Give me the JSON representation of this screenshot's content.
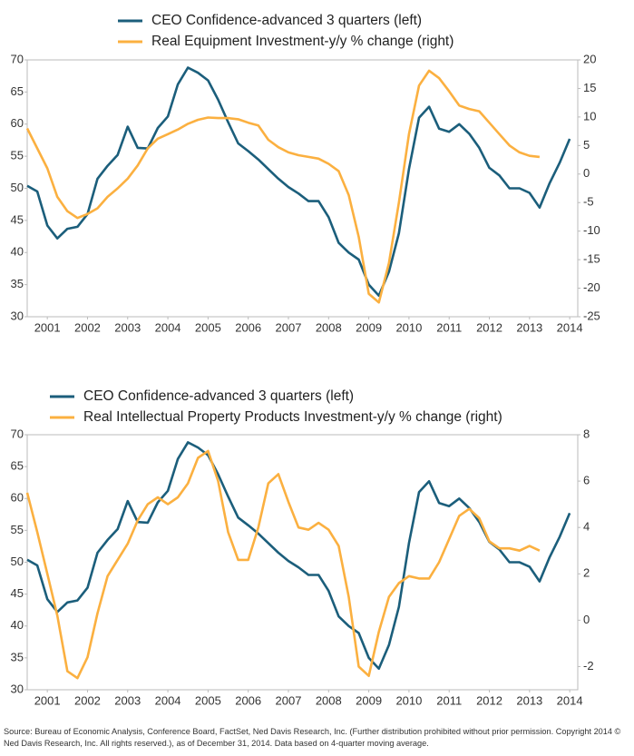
{
  "chart_data": [
    {
      "type": "line",
      "x": [
        2001,
        2001.25,
        2001.5,
        2001.75,
        2002,
        2002.25,
        2002.5,
        2002.75,
        2003,
        2003.25,
        2003.5,
        2003.75,
        2004,
        2004.25,
        2004.5,
        2004.75,
        2005,
        2005.25,
        2005.5,
        2005.75,
        2006,
        2006.25,
        2006.5,
        2006.75,
        2007,
        2007.25,
        2007.5,
        2007.75,
        2008,
        2008.25,
        2008.5,
        2008.75,
        2009,
        2009.25,
        2009.5,
        2009.75,
        2010,
        2010.25,
        2010.5,
        2010.75,
        2011,
        2011.25,
        2011.5,
        2011.75,
        2012,
        2012.25,
        2012.5,
        2012.75,
        2013,
        2013.25,
        2013.5,
        2013.75,
        2014,
        2014.25,
        2014.5
      ],
      "series": [
        {
          "name": "CEO Confidence-advanced 3 quarters (left)",
          "color": "#1b5e7b",
          "axis": "y",
          "values": [
            50.4,
            49.5,
            44.2,
            42.2,
            43.7,
            44.0,
            46,
            51.5,
            53.5,
            55.2,
            59.6,
            56.3,
            56.2,
            59.4,
            61.2,
            66.2,
            68.8,
            68,
            66.8,
            63.8,
            60.3,
            57,
            55.8,
            54.5,
            53,
            51.5,
            50.2,
            49.2,
            48,
            48,
            45.5,
            41.5,
            40,
            38.9,
            35,
            33.3,
            37,
            43,
            53,
            61,
            62.7,
            59.3,
            58.8,
            60,
            58.5,
            56.3,
            53.2,
            52,
            50,
            50,
            49.3,
            47,
            50.8,
            54,
            57.7
          ]
        },
        {
          "name": "Real Equipment Investment-y/y % change (right)",
          "color": "#fbb040",
          "axis": "y2",
          "values": [
            8,
            4.5,
            1,
            -4,
            -6.5,
            -7.7,
            -7,
            -6,
            -4,
            -2.5,
            -0.8,
            1.5,
            4.5,
            6.2,
            7,
            7.8,
            8.8,
            9.5,
            9.9,
            9.8,
            9.8,
            9.6,
            9,
            8.5,
            6,
            4.7,
            3.8,
            3.3,
            3,
            2.7,
            1.8,
            0.5,
            -3.7,
            -11,
            -21,
            -22.5,
            -15.6,
            -5,
            7,
            15.5,
            18.1,
            16.8,
            14.5,
            12,
            11.4,
            11,
            9,
            7,
            5,
            3.8,
            3.2,
            3.0,
            null,
            null,
            null
          ]
        }
      ],
      "xlim": [
        2001,
        2014.7
      ],
      "xticks": [
        {
          "value": 2001.5,
          "label": "2001"
        },
        {
          "value": 2002.5,
          "label": "2002"
        },
        {
          "value": 2003.5,
          "label": "2003"
        },
        {
          "value": 2004.5,
          "label": "2004"
        },
        {
          "value": 2005.5,
          "label": "2005"
        },
        {
          "value": 2006.5,
          "label": "2006"
        },
        {
          "value": 2007.5,
          "label": "2007"
        },
        {
          "value": 2008.5,
          "label": "2008"
        },
        {
          "value": 2009.5,
          "label": "2009"
        },
        {
          "value": 2010.5,
          "label": "2010"
        },
        {
          "value": 2011.5,
          "label": "2011"
        },
        {
          "value": 2012.5,
          "label": "2012"
        },
        {
          "value": 2013.5,
          "label": "2013"
        },
        {
          "value": 2014.5,
          "label": "2014"
        }
      ],
      "ylim": [
        30,
        70
      ],
      "yticks": [
        30,
        35,
        40,
        45,
        50,
        55,
        60,
        65,
        70
      ],
      "y2lim": [
        -25,
        20
      ],
      "y2ticks": [
        -25,
        -20,
        -15,
        -10,
        -5,
        0,
        5,
        10,
        15,
        20
      ]
    },
    {
      "type": "line",
      "x": [
        2001,
        2001.25,
        2001.5,
        2001.75,
        2002,
        2002.25,
        2002.5,
        2002.75,
        2003,
        2003.25,
        2003.5,
        2003.75,
        2004,
        2004.25,
        2004.5,
        2004.75,
        2005,
        2005.25,
        2005.5,
        2005.75,
        2006,
        2006.25,
        2006.5,
        2006.75,
        2007,
        2007.25,
        2007.5,
        2007.75,
        2008,
        2008.25,
        2008.5,
        2008.75,
        2009,
        2009.25,
        2009.5,
        2009.75,
        2010,
        2010.25,
        2010.5,
        2010.75,
        2011,
        2011.25,
        2011.5,
        2011.75,
        2012,
        2012.25,
        2012.5,
        2012.75,
        2013,
        2013.25,
        2013.5,
        2013.75,
        2014,
        2014.25,
        2014.5
      ],
      "series": [
        {
          "name": "CEO Confidence-advanced 3 quarters (left)",
          "color": "#1b5e7b",
          "axis": "y",
          "values": [
            50.4,
            49.5,
            44.2,
            42.2,
            43.7,
            44.0,
            46,
            51.5,
            53.5,
            55.2,
            59.6,
            56.3,
            56.2,
            59.4,
            61.2,
            66.2,
            68.8,
            68,
            66.8,
            63.8,
            60.3,
            57,
            55.8,
            54.5,
            53,
            51.5,
            50.2,
            49.2,
            48,
            48,
            45.5,
            41.5,
            40,
            38.9,
            35,
            33.3,
            37,
            43,
            53,
            61,
            62.7,
            59.3,
            58.8,
            60,
            58.5,
            56.3,
            53.2,
            52,
            50,
            50,
            49.3,
            47,
            50.8,
            54,
            57.7
          ]
        },
        {
          "name": "Real Intellectual Property Products Investment-y/y % change  (right)",
          "color": "#fbb040",
          "axis": "y2",
          "values": [
            5.5,
            3.8,
            2.0,
            0.2,
            -2.2,
            -2.5,
            -1.6,
            0.3,
            1.9,
            2.6,
            3.3,
            4.3,
            5.0,
            5.3,
            5.0,
            5.3,
            5.9,
            7.0,
            7.3,
            6.0,
            3.8,
            2.6,
            2.6,
            4.0,
            5.9,
            6.3,
            5.1,
            4.0,
            3.9,
            4.2,
            3.9,
            3.2,
            1.0,
            -2.0,
            -2.4,
            -0.5,
            1.0,
            1.6,
            1.9,
            1.8,
            1.8,
            2.5,
            3.5,
            4.5,
            4.8,
            4.4,
            3.4,
            3.1,
            3.1,
            3.0,
            3.2,
            3.0,
            null,
            null,
            null
          ]
        }
      ],
      "xlim": [
        2001,
        2014.7
      ],
      "xticks": [
        {
          "value": 2001.5,
          "label": "2001"
        },
        {
          "value": 2002.5,
          "label": "2002"
        },
        {
          "value": 2003.5,
          "label": "2003"
        },
        {
          "value": 2004.5,
          "label": "2004"
        },
        {
          "value": 2005.5,
          "label": "2005"
        },
        {
          "value": 2006.5,
          "label": "2006"
        },
        {
          "value": 2007.5,
          "label": "2007"
        },
        {
          "value": 2008.5,
          "label": "2008"
        },
        {
          "value": 2009.5,
          "label": "2009"
        },
        {
          "value": 2010.5,
          "label": "2010"
        },
        {
          "value": 2011.5,
          "label": "2011"
        },
        {
          "value": 2012.5,
          "label": "2012"
        },
        {
          "value": 2013.5,
          "label": "2013"
        },
        {
          "value": 2014.5,
          "label": "2014"
        }
      ],
      "ylim": [
        30,
        70
      ],
      "yticks": [
        30,
        35,
        40,
        45,
        50,
        55,
        60,
        65,
        70
      ],
      "y2lim": [
        -3,
        8
      ],
      "y2ticks": [
        -2,
        0,
        2,
        4,
        6,
        8
      ]
    }
  ],
  "footnote": "Source: Bureau of Economic Analysis, Conference Board, FactSet, Ned Davis Research, Inc. (Further distribution prohibited without prior permission. Copyright 2014 © Ned Davis Research, Inc. All rights reserved.), as of December 31, 2014. Data based on 4-quarter moving average."
}
